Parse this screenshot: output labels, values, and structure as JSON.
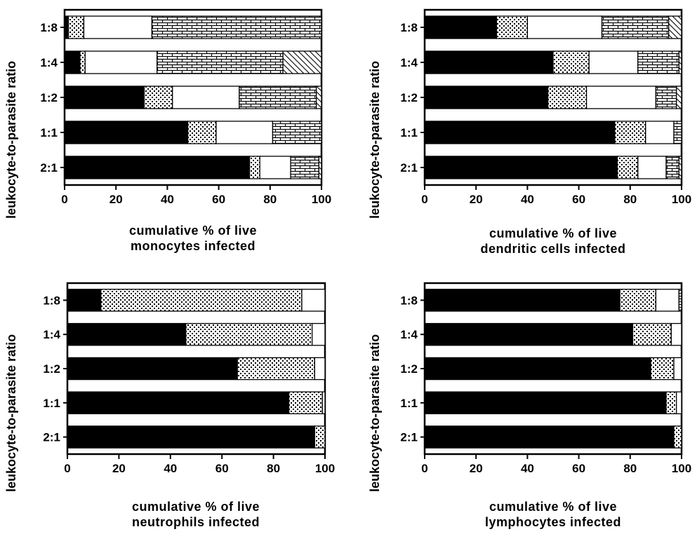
{
  "shared": {
    "ylabel": "leukocyte-to-parasite ratio",
    "categories": [
      "1:8",
      "1:4",
      "1:2",
      "1:1",
      "2:1"
    ],
    "xticks": [
      0,
      20,
      40,
      60,
      80,
      100
    ]
  },
  "chart_data": [
    {
      "type": "bar",
      "stacked": true,
      "orientation": "horizontal",
      "categories": [
        "1:8",
        "1:4",
        "1:2",
        "1:1",
        "2:1"
      ],
      "segments": [
        [
          1.5,
          6,
          26.5,
          66
        ],
        [
          6,
          2,
          28,
          49,
          15
        ],
        [
          31,
          11,
          26,
          30,
          2
        ],
        [
          48,
          11,
          22,
          19
        ],
        [
          72,
          4,
          12,
          11,
          1
        ]
      ],
      "xlabel_line1": "cumulative % of live",
      "xlabel_line2": "monocytes  infected",
      "ylabel": "leukocyte-to-parasite ratio",
      "xlim": [
        0,
        100
      ]
    },
    {
      "type": "bar",
      "stacked": true,
      "orientation": "horizontal",
      "categories": [
        "1:8",
        "1:4",
        "1:2",
        "1:1",
        "2:1"
      ],
      "segments": [
        [
          28,
          12,
          29,
          26,
          5
        ],
        [
          50,
          14,
          19,
          16,
          1
        ],
        [
          48,
          15,
          27,
          8,
          2
        ],
        [
          74,
          12,
          11,
          3
        ],
        [
          75,
          8,
          11,
          5,
          1
        ]
      ],
      "xlabel_line1": "cumulative % of live",
      "xlabel_line2": "dendritic  cells  infected",
      "ylabel": "leukocyte-to-parasite ratio",
      "xlim": [
        0,
        100
      ]
    },
    {
      "type": "bar",
      "stacked": true,
      "orientation": "horizontal",
      "categories": [
        "1:8",
        "1:4",
        "1:2",
        "1:1",
        "2:1"
      ],
      "segments": [
        [
          13,
          78,
          9
        ],
        [
          46,
          49,
          5
        ],
        [
          66,
          30,
          4
        ],
        [
          86,
          13,
          1
        ],
        [
          96,
          4
        ]
      ],
      "xlabel_line1": "cumulative % of live",
      "xlabel_line2": "neutrophils  infected",
      "ylabel": "leukocyte-to-parasite ratio",
      "xlim": [
        0,
        100
      ]
    },
    {
      "type": "bar",
      "stacked": true,
      "orientation": "horizontal",
      "categories": [
        "1:8",
        "1:4",
        "1:2",
        "1:1",
        "2:1"
      ],
      "segments": [
        [
          76,
          14,
          9,
          1
        ],
        [
          81,
          15,
          4
        ],
        [
          88,
          9,
          3
        ],
        [
          94,
          4,
          2
        ],
        [
          97,
          3
        ]
      ],
      "xlabel_line1": "cumulative % of live",
      "xlabel_line2": "lymphocytes  infected",
      "ylabel": "leukocyte-to-parasite ratio",
      "xlim": [
        0,
        100
      ]
    }
  ]
}
